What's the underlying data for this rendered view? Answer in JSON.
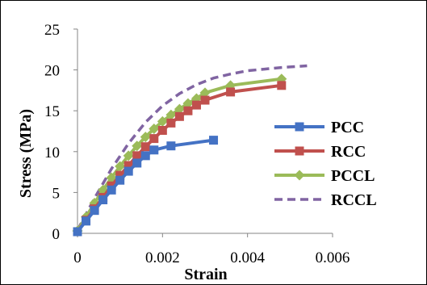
{
  "chart_data": {
    "type": "line",
    "title": "",
    "xlabel": "Strain",
    "ylabel": "Stress (MPa)",
    "xlim": [
      0,
      0.006
    ],
    "ylim": [
      0,
      25
    ],
    "x_ticks": [
      0,
      0.002,
      0.004,
      0.006
    ],
    "x_tick_labels": [
      "0",
      "0.002",
      "0.004",
      "0.006"
    ],
    "y_ticks": [
      0,
      5,
      10,
      15,
      20,
      25
    ],
    "y_tick_labels": [
      "0",
      "5",
      "10",
      "15",
      "20",
      "25"
    ],
    "grid": false,
    "legend_position": "right",
    "series": [
      {
        "name": "PCC",
        "color": "#4472C4",
        "marker": "square",
        "line_style": "solid",
        "x": [
          0,
          0.0002,
          0.0004,
          0.0006,
          0.0008,
          0.001,
          0.0012,
          0.0014,
          0.0016,
          0.0018,
          0.0022,
          0.0032
        ],
        "y": [
          0.2,
          1.5,
          2.8,
          4.1,
          5.3,
          6.5,
          7.6,
          8.6,
          9.5,
          10.2,
          10.7,
          11.4
        ]
      },
      {
        "name": "RCC",
        "color": "#C0504D",
        "marker": "square",
        "line_style": "solid",
        "x": [
          0,
          0.0002,
          0.0004,
          0.0006,
          0.0008,
          0.001,
          0.0012,
          0.0014,
          0.0016,
          0.0018,
          0.002,
          0.0022,
          0.0024,
          0.0026,
          0.0028,
          0.003,
          0.0036,
          0.0048
        ],
        "y": [
          0.2,
          1.6,
          3.0,
          4.4,
          5.8,
          7.1,
          8.3,
          9.5,
          10.6,
          11.6,
          12.6,
          13.5,
          14.3,
          15.0,
          15.7,
          16.3,
          17.3,
          18.1
        ]
      },
      {
        "name": "PCCL",
        "color": "#9BBB59",
        "marker": "diamond",
        "line_style": "solid",
        "x": [
          0,
          0.0002,
          0.0004,
          0.0006,
          0.0008,
          0.001,
          0.0012,
          0.0014,
          0.0016,
          0.0018,
          0.002,
          0.0022,
          0.0024,
          0.0026,
          0.0028,
          0.003,
          0.0036,
          0.0048
        ],
        "y": [
          0.3,
          2.0,
          3.7,
          5.3,
          6.8,
          8.2,
          9.5,
          10.7,
          11.8,
          12.8,
          13.7,
          14.5,
          15.2,
          15.9,
          16.5,
          17.2,
          18.1,
          18.9
        ]
      },
      {
        "name": "RCCL",
        "color": "#8064A2",
        "marker": "none",
        "line_style": "dashed",
        "x": [
          0,
          0.0004,
          0.0008,
          0.0012,
          0.0016,
          0.002,
          0.0024,
          0.0028,
          0.0032,
          0.0036,
          0.004,
          0.0044,
          0.0048,
          0.0054
        ],
        "y": [
          0.4,
          4.3,
          7.9,
          11.0,
          13.6,
          15.6,
          17.1,
          18.2,
          19.0,
          19.5,
          19.9,
          20.1,
          20.3,
          20.5
        ]
      }
    ]
  }
}
